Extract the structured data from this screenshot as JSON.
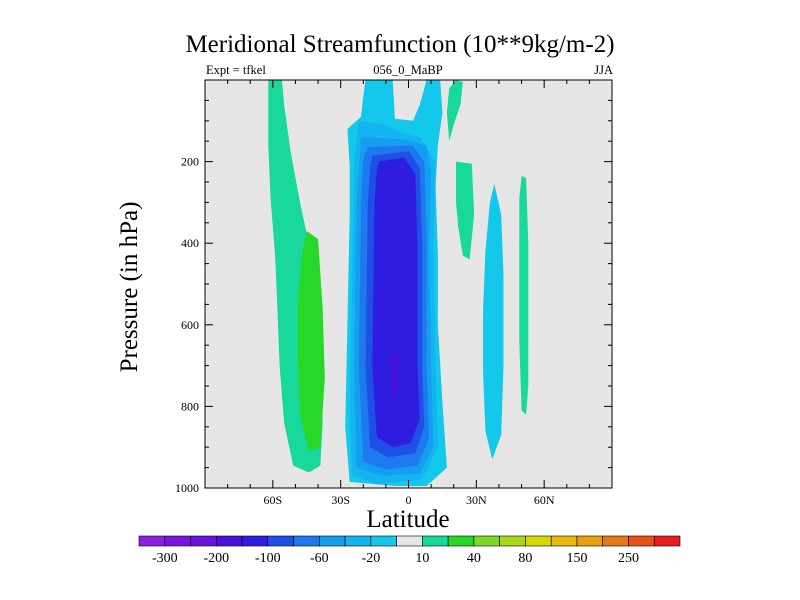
{
  "header": {
    "title": "Meridional Streamfunction (10**9kg/m-2)",
    "left_text": "Expt = tfkel",
    "center_text": "056_0_MaBP",
    "right_text": "JJA"
  },
  "colors": {
    "background_field": "#e6e6e6",
    "levels": [
      "#8c1ee6",
      "#7a14e0",
      "#6a12dc",
      "#4a10d8",
      "#2e1ce0",
      "#1e50e6",
      "#1e78f0",
      "#149ef0",
      "#14b4f0",
      "#14c8ec",
      "#e6e6e6",
      "#18d89c",
      "#28d828",
      "#7ed828",
      "#a8d818",
      "#d8d808",
      "#e8b80e",
      "#e8a010",
      "#e87814",
      "#e85014",
      "#e61e1e"
    ]
  },
  "chart_data": {
    "type": "contour",
    "title": "Meridional Streamfunction (10**9kg/m-2)",
    "xlabel": "Latitude",
    "ylabel": "Pressure (in hPa)",
    "xlim": [
      -90,
      90
    ],
    "ylim": [
      1000,
      0
    ],
    "x_ticks": [
      {
        "value": -60,
        "label": "60S"
      },
      {
        "value": -30,
        "label": "30S"
      },
      {
        "value": 0,
        "label": "0"
      },
      {
        "value": 30,
        "label": "30N"
      },
      {
        "value": 60,
        "label": "60N"
      }
    ],
    "y_ticks": [
      200,
      400,
      600,
      800,
      1000
    ],
    "colorbar_labels": [
      "-300",
      "-200",
      "-100",
      "-60",
      "-20",
      "10",
      "40",
      "80",
      "150",
      "250"
    ],
    "regions": [
      {
        "level": 11,
        "points": [
          [
            -62,
            0
          ],
          [
            -56,
            0
          ],
          [
            -55,
            60
          ],
          [
            -52,
            180
          ],
          [
            -48,
            300
          ],
          [
            -43,
            430
          ],
          [
            -41,
            560
          ],
          [
            -39,
            700
          ],
          [
            -38,
            840
          ],
          [
            -39,
            945
          ],
          [
            -44,
            962
          ],
          [
            -51,
            945
          ],
          [
            -55,
            840
          ],
          [
            -57,
            700
          ],
          [
            -58,
            560
          ],
          [
            -59,
            430
          ],
          [
            -61,
            290
          ],
          [
            -62,
            160
          ]
        ]
      },
      {
        "level": 12,
        "points": [
          [
            -45,
            370
          ],
          [
            -40,
            390
          ],
          [
            -38,
            560
          ],
          [
            -37,
            730
          ],
          [
            -39,
            900
          ],
          [
            -44,
            910
          ],
          [
            -48,
            820
          ],
          [
            -49,
            690
          ],
          [
            -49,
            540
          ],
          [
            -47,
            420
          ]
        ]
      },
      {
        "level": 9,
        "points": [
          [
            -19,
            0
          ],
          [
            -7,
            0
          ],
          [
            -6,
            95
          ],
          [
            2,
            100
          ],
          [
            5,
            60
          ],
          [
            8,
            0
          ],
          [
            14,
            0
          ],
          [
            15,
            80
          ],
          [
            13,
            160
          ],
          [
            12,
            260
          ],
          [
            13,
            430
          ],
          [
            13,
            600
          ],
          [
            15,
            790
          ],
          [
            17,
            950
          ],
          [
            8,
            995
          ],
          [
            -6,
            995
          ],
          [
            -26,
            985
          ],
          [
            -28,
            850
          ],
          [
            -27,
            600
          ],
          [
            -26,
            330
          ],
          [
            -26,
            210
          ],
          [
            -27,
            120
          ],
          [
            -21,
            90
          ],
          [
            -20,
            40
          ]
        ]
      },
      {
        "level": 8,
        "points": [
          [
            -22,
            100
          ],
          [
            -10,
            110
          ],
          [
            -3,
            130
          ],
          [
            5,
            140
          ],
          [
            12,
            200
          ],
          [
            11,
            400
          ],
          [
            12,
            700
          ],
          [
            13,
            900
          ],
          [
            6,
            980
          ],
          [
            -14,
            990
          ],
          [
            -25,
            970
          ],
          [
            -26,
            800
          ],
          [
            -25,
            500
          ],
          [
            -24,
            200
          ]
        ]
      },
      {
        "level": 7,
        "points": [
          [
            -21,
            140
          ],
          [
            -2,
            145
          ],
          [
            8,
            160
          ],
          [
            10,
            230
          ],
          [
            9,
            400
          ],
          [
            10,
            700
          ],
          [
            11,
            900
          ],
          [
            5,
            965
          ],
          [
            -12,
            970
          ],
          [
            -23,
            950
          ],
          [
            -24,
            700
          ],
          [
            -23,
            300
          ]
        ]
      },
      {
        "level": 6,
        "points": [
          [
            -18,
            165
          ],
          [
            2,
            160
          ],
          [
            7,
            200
          ],
          [
            8,
            400
          ],
          [
            8,
            700
          ],
          [
            9,
            880
          ],
          [
            4,
            945
          ],
          [
            -10,
            955
          ],
          [
            -20,
            935
          ],
          [
            -22,
            700
          ],
          [
            -21,
            300
          ],
          [
            -20,
            195
          ]
        ]
      },
      {
        "level": 5,
        "points": [
          [
            -16,
            185
          ],
          [
            0,
            175
          ],
          [
            5,
            215
          ],
          [
            6,
            400
          ],
          [
            6,
            700
          ],
          [
            7,
            850
          ],
          [
            3,
            915
          ],
          [
            -9,
            925
          ],
          [
            -17,
            900
          ],
          [
            -19,
            700
          ],
          [
            -18,
            300
          ],
          [
            -17,
            210
          ]
        ]
      },
      {
        "level": 4,
        "points": [
          [
            -13,
            200
          ],
          [
            -2,
            190
          ],
          [
            3,
            230
          ],
          [
            4,
            400
          ],
          [
            4,
            700
          ],
          [
            5,
            830
          ],
          [
            1,
            890
          ],
          [
            -7,
            900
          ],
          [
            -14,
            875
          ],
          [
            -16,
            700
          ],
          [
            -15,
            300
          ],
          [
            -14,
            220
          ]
        ]
      },
      {
        "level": 3,
        "points": [
          [
            -8,
            680
          ],
          [
            -5,
            670
          ],
          [
            -5,
            760
          ],
          [
            -7,
            780
          ]
        ]
      },
      {
        "level": 11,
        "points": [
          [
            21,
            0
          ],
          [
            24,
            5
          ],
          [
            23,
            60
          ],
          [
            20,
            110
          ],
          [
            18,
            150
          ],
          [
            17,
            80
          ],
          [
            18,
            20
          ]
        ]
      },
      {
        "level": 11,
        "points": [
          [
            21,
            200
          ],
          [
            28,
            205
          ],
          [
            29,
            330
          ],
          [
            27,
            440
          ],
          [
            24,
            430
          ],
          [
            22,
            360
          ],
          [
            21,
            300
          ]
        ]
      },
      {
        "level": 9,
        "points": [
          [
            36,
            300
          ],
          [
            38,
            255
          ],
          [
            41,
            330
          ],
          [
            42,
            480
          ],
          [
            42,
            700
          ],
          [
            41,
            870
          ],
          [
            37,
            930
          ],
          [
            34,
            860
          ],
          [
            33,
            720
          ],
          [
            33,
            560
          ],
          [
            34,
            420
          ]
        ]
      },
      {
        "level": 11,
        "points": [
          [
            50,
            235
          ],
          [
            52,
            240
          ],
          [
            53,
            400
          ],
          [
            53,
            600
          ],
          [
            53,
            750
          ],
          [
            52,
            820
          ],
          [
            50,
            810
          ],
          [
            49,
            640
          ],
          [
            49,
            420
          ],
          [
            49,
            290
          ]
        ]
      }
    ]
  },
  "footer": {
    "xlabel": "Latitude",
    "ylabel": "Pressure (in hPa)"
  }
}
